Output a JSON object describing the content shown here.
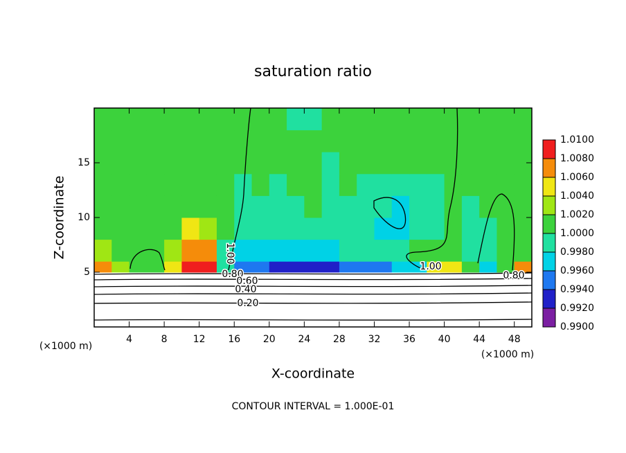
{
  "chart_data": {
    "type": "heatmap",
    "title": "saturation ratio",
    "xlabel": "X-coordinate",
    "ylabel": "Z-coordinate",
    "x_unit": "(×1000 m)",
    "footer": "CONTOUR INTERVAL = 1.000E-01",
    "xlim": [
      0,
      50
    ],
    "ylim": [
      0,
      20
    ],
    "xticks": [
      4,
      8,
      12,
      16,
      20,
      24,
      28,
      32,
      36,
      40,
      44,
      48
    ],
    "yticks": [
      5,
      10,
      15
    ],
    "x_edges": [
      0,
      2,
      4,
      6,
      8,
      10,
      12,
      14,
      16,
      18,
      20,
      22,
      24,
      26,
      28,
      30,
      32,
      34,
      36,
      38,
      40,
      42,
      44,
      46,
      48,
      50
    ],
    "z_edges": [
      0,
      2,
      4,
      5,
      6,
      8,
      10,
      12,
      14,
      16,
      18,
      20
    ],
    "z": [
      [
        0.1,
        0.1,
        0.1,
        0.1,
        0.1,
        0.1,
        0.1,
        0.1,
        0.1,
        0.1,
        0.1,
        0.1,
        0.1,
        0.1,
        0.1,
        0.1,
        0.1,
        0.1,
        0.1,
        0.1,
        0.1,
        0.1,
        0.1,
        0.1,
        0.1
      ],
      [
        0.3,
        0.3,
        0.3,
        0.3,
        0.3,
        0.3,
        0.3,
        0.3,
        0.3,
        0.3,
        0.3,
        0.3,
        0.3,
        0.3,
        0.3,
        0.3,
        0.3,
        0.3,
        0.3,
        0.3,
        0.3,
        0.3,
        0.3,
        0.3,
        0.3
      ],
      [
        0.7,
        0.7,
        0.7,
        0.7,
        0.7,
        0.7,
        0.7,
        0.7,
        0.7,
        0.7,
        0.7,
        0.7,
        0.7,
        0.7,
        0.7,
        0.7,
        0.7,
        0.7,
        0.7,
        0.7,
        0.7,
        0.7,
        0.7,
        0.7,
        0.7
      ],
      [
        1.007,
        1.003,
        1.0,
        1.0,
        1.004,
        1.008,
        1.008,
        0.998,
        0.994,
        0.994,
        0.993,
        0.993,
        0.992,
        0.992,
        0.994,
        0.995,
        0.995,
        0.997,
        0.997,
        1.005,
        1.005,
        1.001,
        0.996,
        1.0,
        1.007
      ],
      [
        1.002,
        1.0,
        1.0,
        1.0,
        1.002,
        1.006,
        1.007,
        0.999,
        0.997,
        0.997,
        0.996,
        0.996,
        0.997,
        0.997,
        0.998,
        0.998,
        0.998,
        0.999,
        1.0,
        1.0,
        1.0,
        0.998,
        0.999,
        1.0,
        1.001
      ],
      [
        1.0,
        1.0,
        1.0,
        1.0,
        1.001,
        1.004,
        1.002,
        1.0,
        0.999,
        0.998,
        0.998,
        0.999,
        0.999,
        0.998,
        0.998,
        0.998,
        0.997,
        0.997,
        0.998,
        0.999,
        1.0,
        0.999,
        0.999,
        1.0,
        1.0
      ],
      [
        1.0,
        1.0,
        1.0,
        1.0,
        1.0,
        1.0,
        1.0,
        1.0,
        0.999,
        0.999,
        0.999,
        0.999,
        1.0,
        0.999,
        0.999,
        0.999,
        0.998,
        0.997,
        0.998,
        0.999,
        1.0,
        0.999,
        1.0,
        1.0,
        1.0
      ],
      [
        1.0,
        1.0,
        1.0,
        1.0,
        1.0,
        1.0,
        1.0,
        1.0,
        0.999,
        1.0,
        0.999,
        1.0,
        1.0,
        0.999,
        1.0,
        0.999,
        0.999,
        0.999,
        0.999,
        0.999,
        1.0,
        1.0,
        1.0,
        1.0,
        1.0
      ],
      [
        1.0,
        1.0,
        1.0,
        1.0,
        1.0,
        1.0,
        1.0,
        1.0,
        1.0,
        1.0,
        1.0,
        1.0,
        1.0,
        0.999,
        1.0,
        1.0,
        1.0,
        1.0,
        1.0,
        1.0,
        1.0,
        1.0,
        1.0,
        1.0,
        1.0
      ],
      [
        1.0,
        1.0,
        1.0,
        1.0,
        1.0,
        1.0,
        1.0,
        1.0,
        1.0,
        1.0,
        1.0,
        1.0,
        1.0,
        1.0,
        1.0,
        1.0,
        1.0,
        1.0,
        1.0,
        1.0,
        1.0,
        1.0,
        1.0,
        1.0,
        1.0
      ],
      [
        1.0,
        1.0,
        1.0,
        1.0,
        1.0,
        1.0,
        1.0,
        1.0,
        1.0,
        1.0,
        1.0,
        0.998,
        0.998,
        1.0,
        1.0,
        1.0,
        1.0,
        1.0,
        1.0,
        1.0,
        1.0,
        1.0,
        1.0,
        1.0,
        1.0
      ]
    ],
    "colorbar_ticks": [
      {
        "value": 0.99,
        "label": "0.9900"
      },
      {
        "value": 0.992,
        "label": "0.9920"
      },
      {
        "value": 0.994,
        "label": "0.9940"
      },
      {
        "value": 0.996,
        "label": "0.9960"
      },
      {
        "value": 0.998,
        "label": "0.9980"
      },
      {
        "value": 1.0,
        "label": "1.0000"
      },
      {
        "value": 1.002,
        "label": "1.0020"
      },
      {
        "value": 1.004,
        "label": "1.0040"
      },
      {
        "value": 1.006,
        "label": "1.0060"
      },
      {
        "value": 1.008,
        "label": "1.0080"
      },
      {
        "value": 1.01,
        "label": "1.0100"
      }
    ],
    "colors": [
      "#7b1fa2",
      "#2020c8",
      "#1e78f0",
      "#00d2e6",
      "#20e0a0",
      "#3cd23c",
      "#a0e614",
      "#f0e614",
      "#f58c0a",
      "#f01e1e"
    ],
    "contour_labels": [
      "1.00",
      "0.80",
      "0.60",
      "0.40",
      "0.20",
      "1.00",
      "0.80"
    ]
  }
}
